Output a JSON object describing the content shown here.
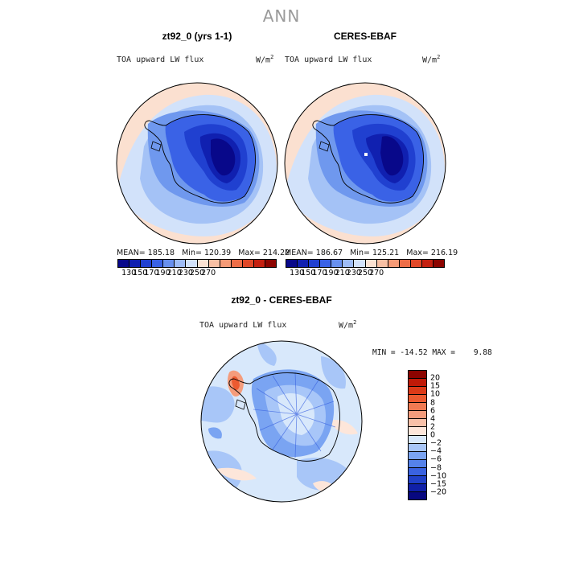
{
  "title": "ANN",
  "panels": [
    {
      "title": "zt92_0 (yrs 1-1)",
      "variable": "TOA upward LW flux",
      "units_base": "W/m",
      "units_exp": "2",
      "stats": {
        "mean_label": "MEAN=",
        "mean": "185.18",
        "min_label": "Min=",
        "min": "120.39",
        "max_label": "Max=",
        "max": "214.22"
      }
    },
    {
      "title": "CERES-EBAF",
      "variable": "TOA upward LW flux",
      "units_base": "W/m",
      "units_exp": "2",
      "stats": {
        "mean_label": "MEAN=",
        "mean": "186.67",
        "min_label": "Min=",
        "min": "125.21",
        "max_label": "Max=",
        "max": "216.19"
      }
    },
    {
      "title": "zt92_0 - CERES-EBAF",
      "variable": "TOA upward LW flux",
      "units_base": "W/m",
      "units_exp": "2",
      "stats_text": "MIN = -14.52 MAX =    9.88"
    }
  ],
  "colorbars": {
    "field": {
      "tick_labels": [
        "130",
        "150",
        "170",
        "190",
        "210",
        "230",
        "250",
        "270"
      ],
      "colors": [
        "#08088a",
        "#1020b0",
        "#2040d0",
        "#3a62e6",
        "#6890ee",
        "#9ebcf6",
        "#d2e2fa",
        "#fbe2d2",
        "#f8c0a4",
        "#f59a76",
        "#ee6e48",
        "#e04828",
        "#c42010",
        "#8c0400"
      ]
    },
    "difference": {
      "tick_labels": [
        "20",
        "15",
        "10",
        "8",
        "6",
        "4",
        "2",
        "0",
        "−2",
        "−4",
        "−6",
        "−8",
        "−10",
        "−15",
        "−20"
      ],
      "colors": [
        "#8c0400",
        "#c01a08",
        "#dc3a18",
        "#ec5a30",
        "#f07a52",
        "#f49c7c",
        "#f8c0a8",
        "#fde6da",
        "#d8e8fb",
        "#a8c6f8",
        "#7aa4f2",
        "#5582ea",
        "#3a62e0",
        "#2040c8",
        "#1020a8",
        "#080880"
      ]
    }
  },
  "map_colors": {
    "ocean_far": "#fbe0d0",
    "ocean_mid": "#d2e2fa",
    "ocean_near": "#a4c2f6",
    "coast_band": "#6f98ee",
    "ice_outer": "#3a62e6",
    "ice_mid": "#2040d0",
    "ice_inner": "#1020b0",
    "ice_core": "#08088a"
  }
}
